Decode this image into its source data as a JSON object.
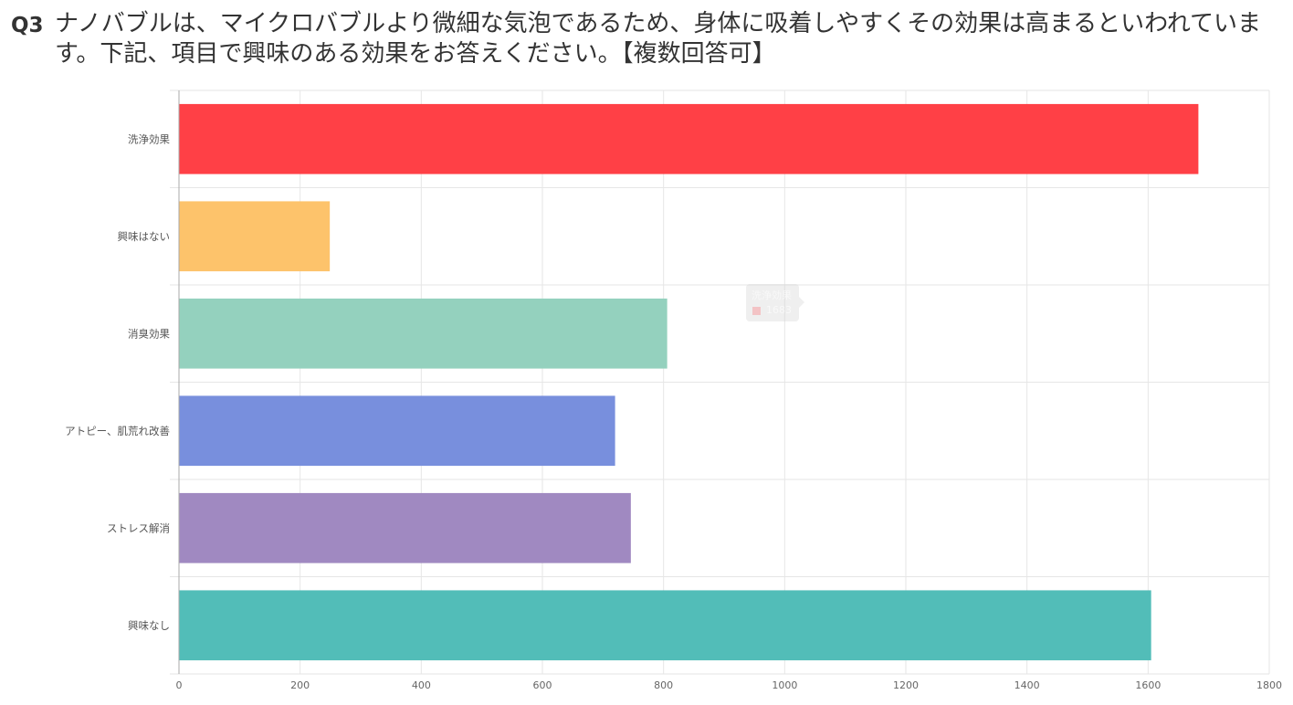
{
  "question": {
    "number": "Q3",
    "text": "ナノバブルは、マイクロバブルより微細な気泡であるため、身体に吸着しやすくその効果は高まるといわれています。下記、項目で興味のある効果をお答えください。【複数回答可】"
  },
  "chart_data": {
    "type": "bar",
    "orientation": "horizontal",
    "categories": [
      "洗浄効果",
      "興味はない",
      "消臭効果",
      "アトピー、肌荒れ改善",
      "ストレス解消",
      "興味なし"
    ],
    "values": [
      1683,
      249,
      806,
      720,
      746,
      1605
    ],
    "colors": [
      "#ff4046",
      "#fdc36b",
      "#94d1be",
      "#788fdd",
      "#a089c1",
      "#52bdb8"
    ],
    "xlim": [
      0,
      1800
    ],
    "xticks": [
      0,
      200,
      400,
      600,
      800,
      1000,
      1200,
      1400,
      1600,
      1800
    ],
    "grid": true,
    "legend": "none"
  },
  "tooltip": {
    "category": "洗浄効果",
    "value": "1683",
    "swatch_color": "#ff4046"
  }
}
